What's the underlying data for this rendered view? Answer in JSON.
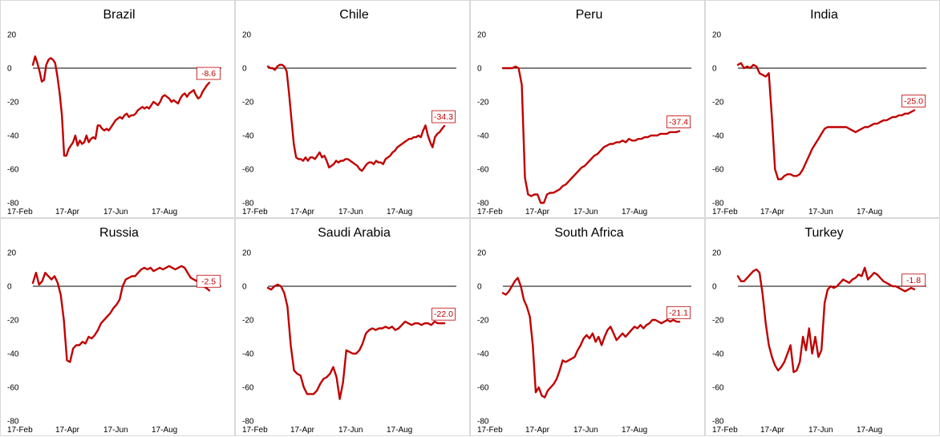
{
  "theme": {
    "line_color": "#c00000",
    "zero_line_color": "#000000",
    "border_color": "#d9d9d9"
  },
  "chart_data": [
    {
      "type": "line",
      "title": "Brazil",
      "xticks": [
        "17-Feb",
        "17-Apr",
        "17-Jun",
        "17-Aug"
      ],
      "yticks": [
        20,
        0,
        -20,
        -40,
        -60,
        -80
      ],
      "ylim": [
        -80,
        20
      ],
      "x": [
        0,
        2,
        4,
        6,
        8,
        10,
        12,
        14,
        16,
        18,
        20,
        22,
        24,
        26,
        28,
        30,
        32,
        34,
        36,
        38,
        40,
        42,
        44,
        46,
        48,
        50,
        52,
        54,
        56,
        58,
        60,
        62,
        64,
        66,
        68,
        70,
        72,
        74,
        76,
        78,
        80,
        82,
        84,
        86,
        88,
        90,
        92,
        94,
        96,
        98,
        100,
        102,
        104,
        106,
        108,
        110,
        112,
        114,
        116,
        118,
        120,
        122,
        124,
        126,
        128,
        130,
        132,
        134,
        136,
        138,
        140,
        142,
        144,
        146,
        148,
        150,
        152,
        154,
        156,
        158,
        160,
        162,
        164,
        166,
        168,
        170,
        172,
        174,
        176,
        178,
        180,
        182,
        184,
        186,
        188,
        190,
        192,
        194,
        196,
        198,
        200,
        202,
        204,
        206,
        208,
        210,
        212,
        214,
        216,
        218,
        220,
        222,
        224
      ],
      "values": [
        2,
        7,
        3,
        -2,
        -8,
        -7,
        2,
        5,
        6,
        5,
        3,
        -5,
        -15,
        -28,
        -52,
        -52,
        -48,
        -46,
        -44,
        -40,
        -46,
        -43,
        -45,
        -44,
        -40,
        -44,
        -42,
        -41,
        -42,
        -34,
        -34,
        -36,
        -37,
        -36,
        -37,
        -35,
        -33,
        -31,
        -30,
        -29,
        -30,
        -28,
        -27,
        -29,
        -28,
        -28,
        -27,
        -25,
        -24,
        -23,
        -24,
        -23,
        -24,
        -22,
        -20,
        -21,
        -22,
        -20,
        -17,
        -16,
        -17,
        -18,
        -20,
        -19,
        -20,
        -21,
        -18,
        -16,
        -15,
        -17,
        -15,
        -14,
        -13,
        -16,
        -18,
        -17,
        -14,
        -12,
        -10,
        -8.6,
        -8.6,
        -8.6,
        -8.6,
        -8.6,
        -8.6,
        -8.6,
        -8.6,
        -8.6,
        -8.6,
        -8.6,
        -8.6,
        -8.6,
        -8.6,
        -8.6,
        -8.6,
        -8.6,
        -8.6,
        -8.6,
        -8.6,
        -8.6,
        -8.6,
        -8.6,
        -8.6,
        -8.6,
        -8.6,
        -8.6,
        -8.6,
        -8.6,
        -8.6,
        -8.6,
        -8.6,
        -8.6,
        -8.6
      ],
      "n": 80,
      "end_label": "-8.6"
    },
    {
      "type": "line",
      "title": "Chile",
      "xticks": [
        "17-Feb",
        "17-Apr",
        "17-Jun",
        "17-Aug"
      ],
      "yticks": [
        20,
        0,
        -20,
        -40,
        -60,
        -80
      ],
      "ylim": [
        -80,
        20
      ],
      "values": [
        1,
        0,
        0,
        -1,
        1,
        2,
        2,
        1,
        -2,
        -15,
        -30,
        -45,
        -53,
        -54,
        -54,
        -55,
        -53,
        -55,
        -53,
        -53,
        -54,
        -52,
        -50,
        -53,
        -52,
        -55,
        -59,
        -58,
        -57,
        -55,
        -56,
        -55,
        -55,
        -54,
        -54,
        -55,
        -56,
        -57,
        -58,
        -60,
        -61,
        -59,
        -57,
        -56,
        -56,
        -57,
        -55,
        -56,
        -56,
        -57,
        -54,
        -53,
        -52,
        -50,
        -49,
        -47,
        -46,
        -45,
        -44,
        -43,
        -42,
        -42,
        -41,
        -41,
        -40,
        -41,
        -37,
        -34,
        -40,
        -44,
        -47,
        -41,
        -39,
        -38,
        -36,
        -34.3
      ],
      "end_label": "-34.3"
    },
    {
      "type": "line",
      "title": "Peru",
      "xticks": [
        "17-Feb",
        "17-Apr",
        "17-Jun",
        "17-Aug"
      ],
      "yticks": [
        20,
        0,
        -20,
        -40,
        -60,
        -80
      ],
      "ylim": [
        -80,
        20
      ],
      "values": [
        0,
        0,
        0,
        0,
        1,
        0,
        -10,
        -65,
        -75,
        -76,
        -75,
        -75,
        -80,
        -80,
        -75,
        -74,
        -74,
        -73,
        -72,
        -70,
        -69,
        -67,
        -65,
        -63,
        -61,
        -59,
        -58,
        -56,
        -54,
        -52,
        -51,
        -49,
        -47,
        -46,
        -45,
        -45,
        -44,
        -44,
        -43,
        -44,
        -42,
        -43,
        -43,
        -42,
        -42,
        -41,
        -41,
        -40,
        -40,
        -40,
        -39,
        -39,
        -39,
        -38,
        -38,
        -38,
        -37.4
      ],
      "end_label": "-37.4"
    },
    {
      "type": "line",
      "title": "India",
      "xticks": [
        "17-Feb",
        "17-Apr",
        "17-Jun",
        "17-Aug"
      ],
      "yticks": [
        20,
        0,
        -20,
        -40,
        -60,
        -80
      ],
      "ylim": [
        -80,
        20
      ],
      "values": [
        2,
        3,
        0,
        1,
        0,
        2,
        1,
        -3,
        -4,
        -5,
        -3,
        -30,
        -60,
        -66,
        -66,
        -64,
        -63,
        -63,
        -64,
        -64,
        -63,
        -60,
        -56,
        -52,
        -48,
        -45,
        -42,
        -39,
        -36,
        -35,
        -35,
        -35,
        -35,
        -35,
        -35,
        -35,
        -36,
        -37,
        -38,
        -37,
        -36,
        -35,
        -35,
        -34,
        -33,
        -33,
        -32,
        -31,
        -31,
        -30,
        -29,
        -29,
        -28,
        -28,
        -27,
        -27,
        -26,
        -25
      ],
      "end_label": "-25.0"
    },
    {
      "type": "line",
      "title": "Russia",
      "xticks": [
        "17-Feb",
        "17-Apr",
        "17-Jun",
        "17-Aug"
      ],
      "yticks": [
        20,
        0,
        -20,
        -40,
        -60,
        -80
      ],
      "ylim": [
        -80,
        20
      ],
      "values": [
        2,
        8,
        1,
        3,
        8,
        6,
        4,
        6,
        2,
        -5,
        -20,
        -44,
        -45,
        -37,
        -35,
        -35,
        -33,
        -34,
        -30,
        -31,
        -29,
        -26,
        -22,
        -20,
        -18,
        -16,
        -13,
        -11,
        -8,
        0,
        4,
        5,
        6,
        6,
        8,
        10,
        11,
        10,
        11,
        9,
        10,
        11,
        10,
        11,
        12,
        11,
        10,
        11,
        12,
        11,
        8,
        5,
        4,
        3,
        2,
        0,
        -1,
        -2.5
      ],
      "end_label": "-2.5"
    },
    {
      "type": "line",
      "title": "Saudi Arabia",
      "xticks": [
        "17-Feb",
        "17-Apr",
        "17-Jun",
        "17-Aug"
      ],
      "yticks": [
        20,
        0,
        -20,
        -40,
        -60,
        -80
      ],
      "ylim": [
        -80,
        20
      ],
      "values": [
        -1,
        -2,
        0,
        1,
        0,
        -4,
        -12,
        -35,
        -50,
        -52,
        -53,
        -60,
        -64,
        -64,
        -64,
        -62,
        -58,
        -55,
        -54,
        -52,
        -48,
        -54,
        -67,
        -57,
        -38,
        -39,
        -40,
        -40,
        -38,
        -34,
        -28,
        -26,
        -25,
        -26,
        -25,
        -25,
        -24,
        -25,
        -24,
        -26,
        -25,
        -23,
        -21,
        -22,
        -23,
        -22,
        -22,
        -23,
        -22,
        -22,
        -23,
        -21,
        -22,
        -22,
        -22
      ],
      "end_label": "-22.0"
    },
    {
      "type": "line",
      "title": "South Africa",
      "xticks": [
        "17-Feb",
        "17-Apr",
        "17-Jun",
        "17-Aug"
      ],
      "yticks": [
        20,
        0,
        -20,
        -40,
        -60,
        -80
      ],
      "ylim": [
        -80,
        20
      ],
      "values": [
        -4,
        -5,
        -3,
        0,
        3,
        5,
        0,
        -8,
        -12,
        -18,
        -35,
        -63,
        -60,
        -65,
        -66,
        -62,
        -60,
        -58,
        -55,
        -50,
        -44,
        -45,
        -44,
        -43,
        -42,
        -38,
        -35,
        -31,
        -29,
        -31,
        -28,
        -33,
        -30,
        -35,
        -30,
        -26,
        -24,
        -28,
        -32,
        -30,
        -28,
        -30,
        -28,
        -26,
        -24,
        -25,
        -23,
        -25,
        -23,
        -22,
        -20,
        -20,
        -21,
        -22,
        -21,
        -20,
        -21,
        -20,
        -21,
        -21.1
      ],
      "end_label": "-21.1"
    },
    {
      "type": "line",
      "title": "Turkey",
      "xticks": [
        "17-Feb",
        "17-Apr",
        "17-Jun",
        "17-Aug"
      ],
      "yticks": [
        20,
        0,
        -20,
        -40,
        -60,
        -80
      ],
      "ylim": [
        -80,
        20
      ],
      "values": [
        6,
        3,
        3,
        5,
        7,
        9,
        10,
        8,
        -5,
        -22,
        -35,
        -42,
        -47,
        -50,
        -48,
        -45,
        -40,
        -35,
        -51,
        -50,
        -45,
        -30,
        -38,
        -25,
        -40,
        -30,
        -42,
        -38,
        -10,
        -2,
        0,
        -1,
        0,
        2,
        4,
        3,
        2,
        4,
        5,
        7,
        6,
        11,
        4,
        6,
        8,
        7,
        5,
        3,
        2,
        1,
        0,
        0,
        -1,
        -2,
        -3,
        -2,
        -1,
        -1.8
      ],
      "end_label": "-1.8"
    }
  ]
}
